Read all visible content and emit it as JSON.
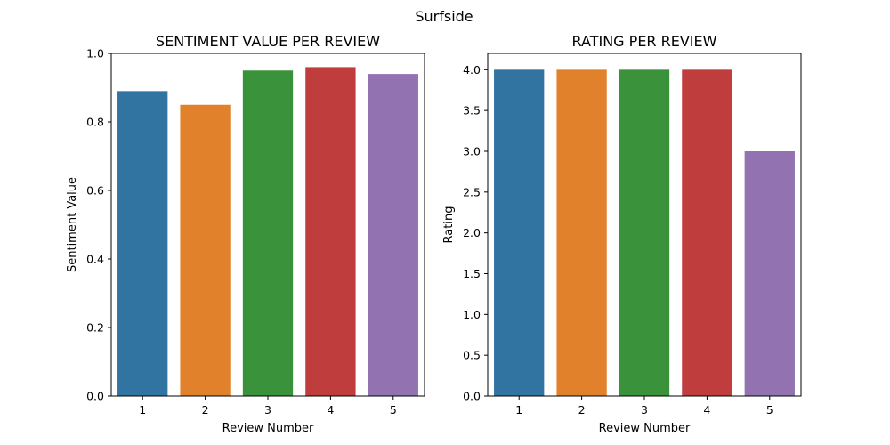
{
  "figure": {
    "suptitle": "Surfside"
  },
  "chart_data": [
    {
      "type": "bar",
      "title": "SENTIMENT VALUE PER REVIEW",
      "xlabel": "Review Number",
      "ylabel": "Sentiment Value",
      "categories": [
        "1",
        "2",
        "3",
        "4",
        "5"
      ],
      "values": [
        0.89,
        0.85,
        0.95,
        0.96,
        0.94
      ],
      "ylim": [
        0,
        1.0
      ],
      "yticks": [
        "0.0",
        "0.2",
        "0.4",
        "0.6",
        "0.8",
        "1.0"
      ],
      "colors": [
        "#3274a1",
        "#e1812c",
        "#3a923a",
        "#c03d3e",
        "#9372b2"
      ],
      "grid": false,
      "legend": "none"
    },
    {
      "type": "bar",
      "title": "RATING PER REVIEW",
      "xlabel": "Review Number",
      "ylabel": "Rating",
      "categories": [
        "1",
        "2",
        "3",
        "4",
        "5"
      ],
      "values": [
        4.0,
        4.0,
        4.0,
        4.0,
        3.0
      ],
      "ylim": [
        0,
        4.2
      ],
      "yticks": [
        "0.0",
        "0.5",
        "1.0",
        "1.5",
        "2.0",
        "2.5",
        "3.0",
        "3.5",
        "4.0"
      ],
      "colors": [
        "#3274a1",
        "#e1812c",
        "#3a923a",
        "#c03d3e",
        "#9372b2"
      ],
      "grid": false,
      "legend": "none"
    }
  ]
}
